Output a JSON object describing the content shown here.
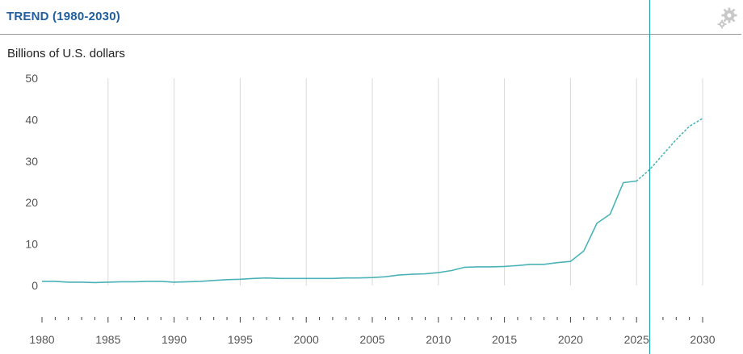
{
  "header": {
    "title": "TREND (1980-2030)",
    "settings_icon": "gear-icon"
  },
  "colors": {
    "line": "#4bb3b8",
    "marker": "#2a9da3",
    "grid": "#d9d9d9",
    "title": "#1f5f9e"
  },
  "chart_data": {
    "type": "line",
    "title": "",
    "ylabel": "Billions of U.S. dollars",
    "xlabel": "",
    "xlim": [
      1980,
      2030
    ],
    "ylim": [
      0,
      50
    ],
    "y_ticks": [
      "0",
      "10",
      "20",
      "30",
      "40",
      "50"
    ],
    "x_ticks": [
      "1980",
      "1985",
      "1990",
      "1995",
      "2000",
      "2005",
      "2010",
      "2015",
      "2020",
      "2025",
      "2030"
    ],
    "grid": "vertical",
    "current_year_marker": 2026,
    "series": [
      {
        "style": "solid",
        "x": [
          1980,
          1981,
          1982,
          1983,
          1984,
          1985,
          1986,
          1987,
          1988,
          1989,
          1990,
          1991,
          1992,
          1993,
          1994,
          1995,
          1996,
          1997,
          1998,
          1999,
          2000,
          2001,
          2002,
          2003,
          2004,
          2005,
          2006,
          2007,
          2008,
          2009,
          2010,
          2011,
          2012,
          2013,
          2014,
          2015,
          2016,
          2017,
          2018,
          2019,
          2020,
          2021,
          2022,
          2023,
          2024,
          2025
        ],
        "y": [
          1.0,
          1.0,
          0.8,
          0.8,
          0.7,
          0.8,
          0.9,
          0.9,
          1.0,
          1.0,
          0.8,
          0.9,
          1.0,
          1.2,
          1.4,
          1.5,
          1.7,
          1.8,
          1.7,
          1.7,
          1.7,
          1.7,
          1.7,
          1.8,
          1.8,
          1.9,
          2.1,
          2.5,
          2.7,
          2.8,
          3.1,
          3.6,
          4.4,
          4.5,
          4.5,
          4.6,
          4.8,
          5.1,
          5.1,
          5.5,
          5.8,
          8.3,
          15.0,
          17.2,
          24.8,
          25.2
        ]
      },
      {
        "style": "dotted",
        "x": [
          2025,
          2026,
          2027,
          2028,
          2029,
          2030
        ],
        "y": [
          25.2,
          28.0,
          31.6,
          35.2,
          38.4,
          40.3
        ]
      }
    ]
  }
}
